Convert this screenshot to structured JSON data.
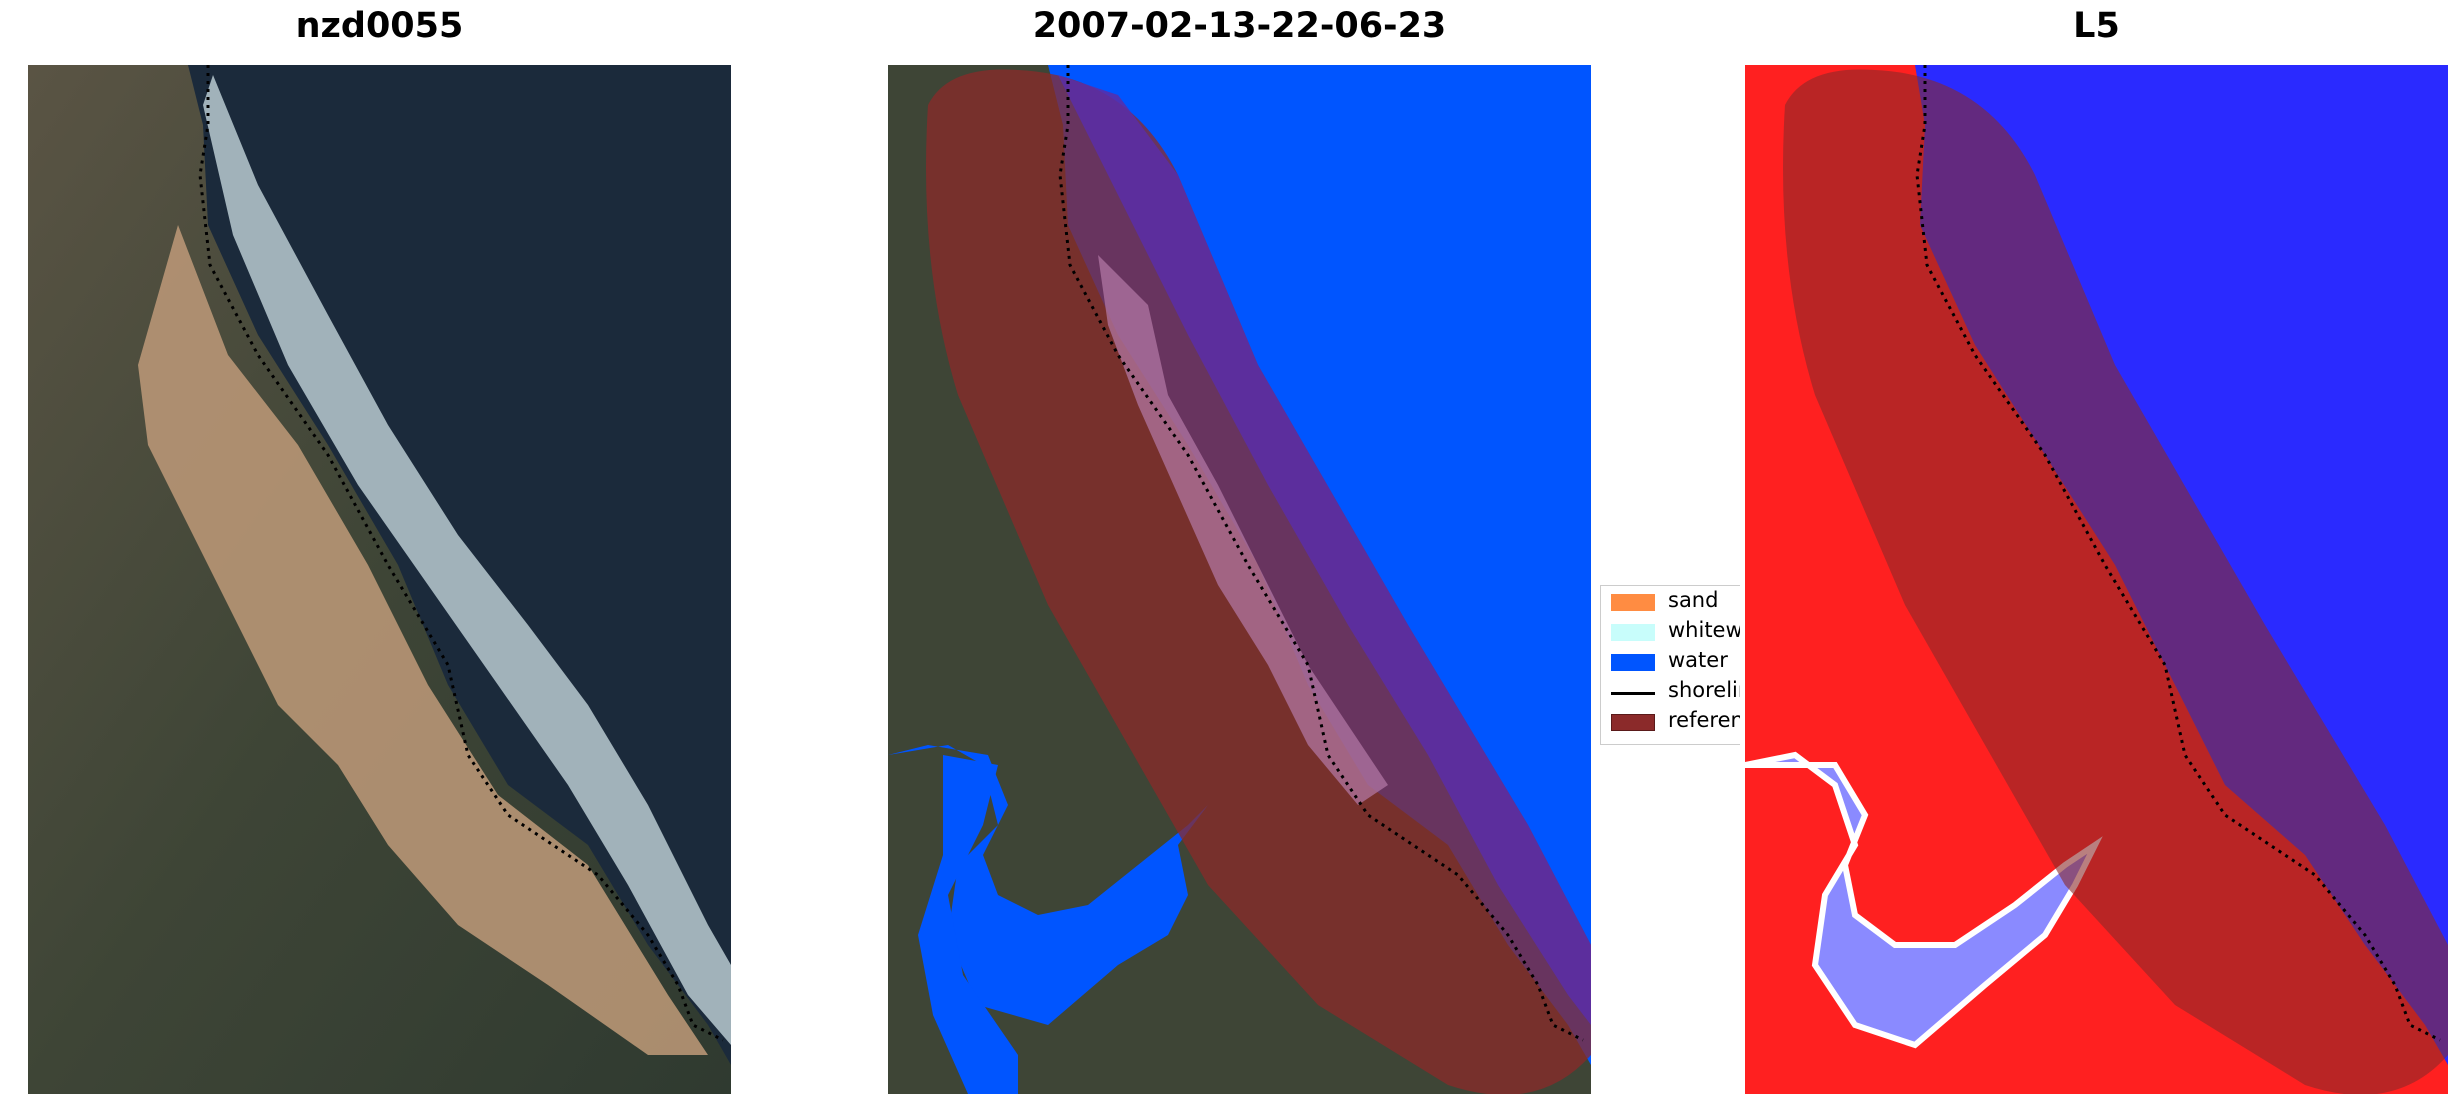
{
  "panels": [
    {
      "title": "nzd0055"
    },
    {
      "title": "2007-02-13-22-06-23"
    },
    {
      "title": "L5"
    }
  ],
  "legend": {
    "items": [
      {
        "label": "sand",
        "color": "#ff8c42",
        "kind": "patch"
      },
      {
        "label": "whitewater",
        "color": "#c8fdfb",
        "kind": "patch"
      },
      {
        "label": "water",
        "color": "#0055ff",
        "kind": "patch"
      },
      {
        "label": "shoreline",
        "color": "#000000",
        "kind": "line"
      },
      {
        "label": "reference shoreline buffer",
        "color": "#8b2a2a",
        "kind": "patch"
      }
    ]
  },
  "colors": {
    "ocean_dark": "#1b2a3b",
    "land_dark": "#3b3f33",
    "beach_sand": "#b89675",
    "surf": "#cfe0e6",
    "class_water": "#0055ff",
    "buffer_overlay": "#8b2a2a",
    "index_red": "#ff2020",
    "index_blue": "#2a2aff"
  }
}
